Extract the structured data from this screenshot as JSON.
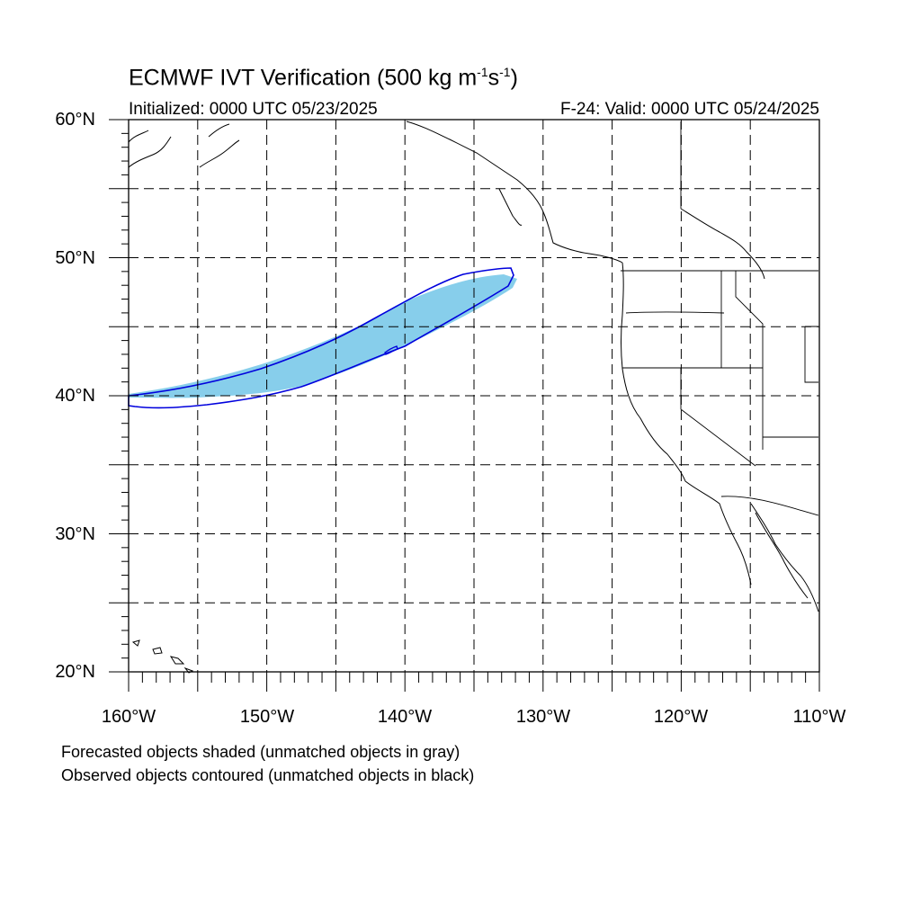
{
  "title": {
    "main": "ECMWF IVT Verification (500 kg m",
    "exp1": "-1",
    "mid": "s",
    "exp2": "-1",
    "end": ")"
  },
  "initialized": "Initialized: 0000 UTC 05/23/2025",
  "valid": "F-24: Valid: 0000 UTC 05/24/2025",
  "notes": {
    "forecast": "Forecasted objects shaded (unmatched objects in gray)",
    "observed": "Observed objects contoured (unmatched objects in black)"
  },
  "axes": {
    "lat_labels": [
      "60°N",
      "50°N",
      "40°N",
      "30°N",
      "20°N"
    ],
    "lon_labels": [
      "160°W",
      "150°W",
      "140°W",
      "130°W",
      "120°W",
      "110°W"
    ],
    "lat_range": [
      20,
      60
    ],
    "lon_range": [
      -160,
      -110
    ],
    "grid_spacing_deg": 5
  },
  "colors": {
    "forecast_fill": "#87ceeb",
    "observed_contour": "#0000dd",
    "coastline": "#000000",
    "grid": "#000000"
  },
  "objects": {
    "forecast_object": "matched atmospheric river IVT object (shaded)",
    "observed_object": "matched atmospheric river IVT object (contoured)"
  }
}
